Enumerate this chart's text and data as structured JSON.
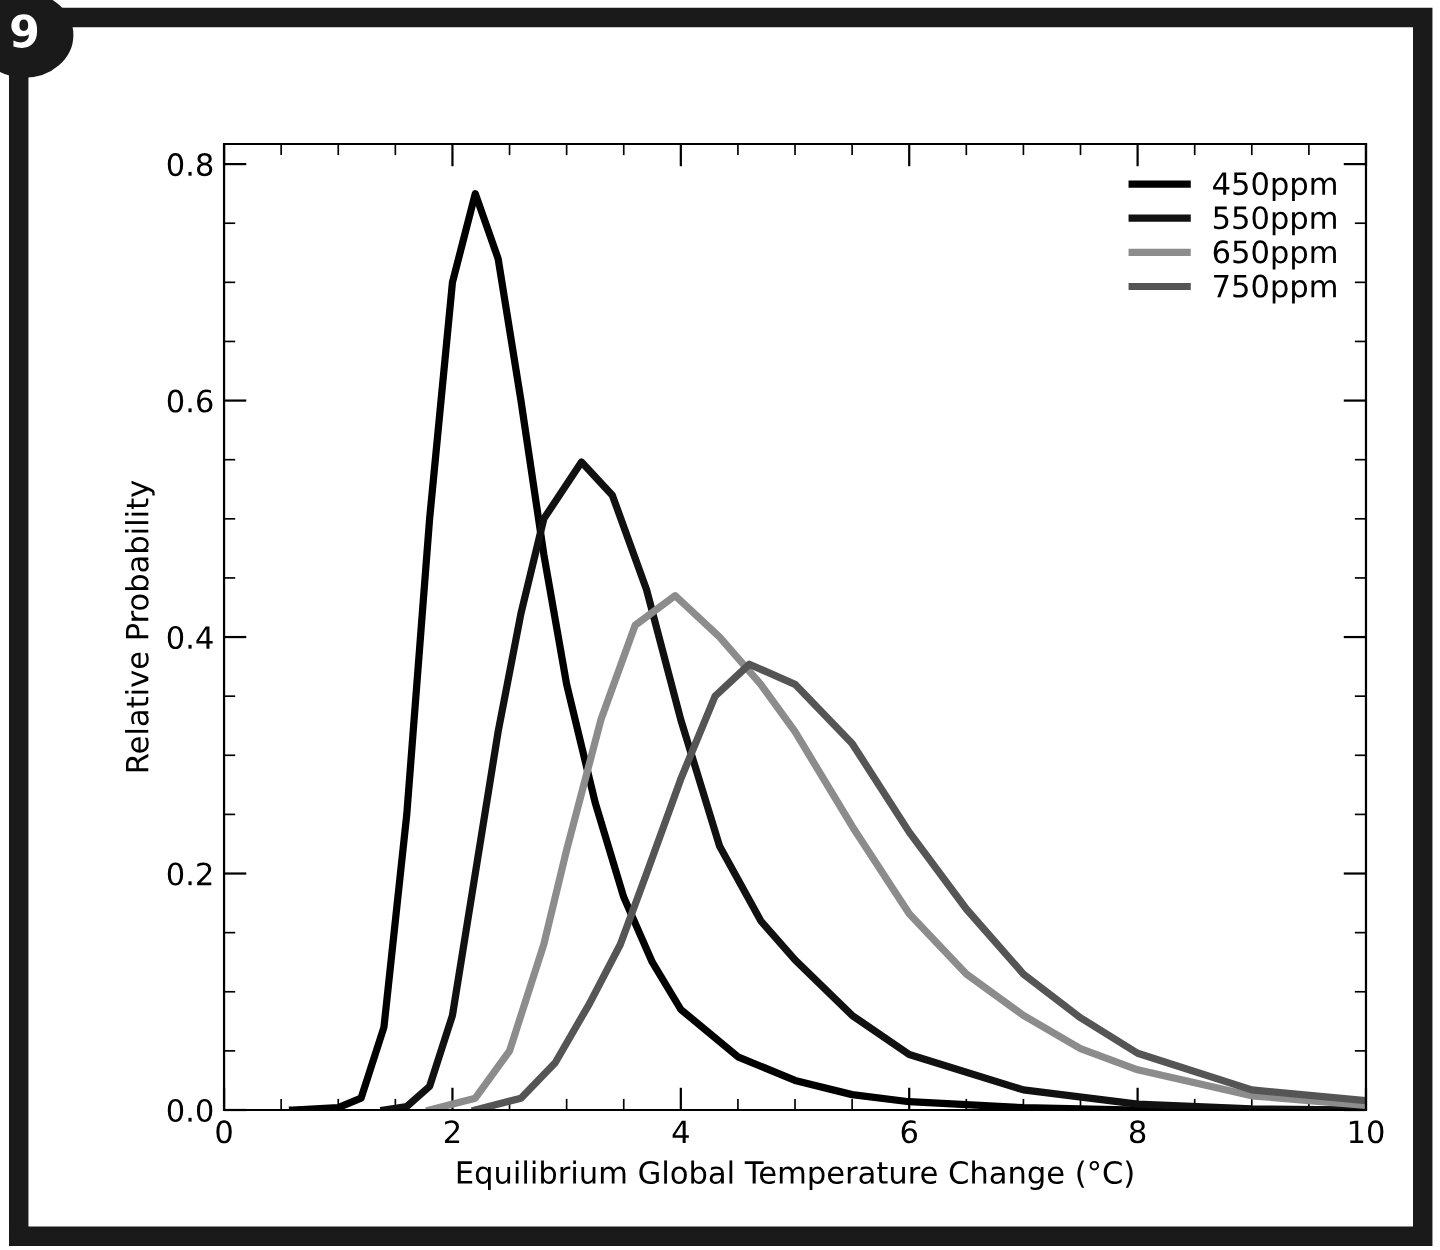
{
  "chart_data": {
    "type": "line",
    "xlabel": "Equilibrium Global Temperature Change (°C)",
    "ylabel": "Relative Probability",
    "annotations": [
      "9"
    ],
    "xlim": [
      0,
      10
    ],
    "xticks": [
      0,
      2,
      4,
      6,
      8,
      10
    ],
    "ylim": [
      0,
      0.817
    ],
    "yticks": [
      {
        "value": 0,
        "label": "0.0"
      },
      {
        "value": 0.2,
        "label": "0.2"
      },
      {
        "value": 0.4,
        "label": "0.4"
      },
      {
        "value": 0.6,
        "label": "0.6"
      },
      {
        "value": 0.8,
        "label": "0.8"
      }
    ],
    "grid": false,
    "legend": "top right",
    "marker": "none",
    "line_style": "solid",
    "series": [
      {
        "name": "450ppm",
        "color": "#000000",
        "x": [
          0.6,
          1.0,
          1.2,
          1.4,
          1.6,
          1.8,
          2.0,
          2.2,
          2.4,
          2.6,
          2.8,
          3.0,
          3.25,
          3.5,
          3.75,
          4.0,
          4.5,
          5.0,
          5.5,
          6.0,
          7.0,
          8.0,
          10.0
        ],
        "values": [
          0,
          0.002,
          0.01,
          0.07,
          0.25,
          0.5,
          0.7,
          0.775,
          0.72,
          0.6,
          0.47,
          0.36,
          0.26,
          0.18,
          0.125,
          0.085,
          0.045,
          0.025,
          0.013,
          0.007,
          0.002,
          0,
          0
        ]
      },
      {
        "name": "550ppm",
        "color": "#111111",
        "x": [
          1.4,
          1.6,
          1.8,
          2.0,
          2.2,
          2.4,
          2.6,
          2.8,
          3.13,
          3.4,
          3.7,
          4.0,
          4.34,
          4.7,
          5.0,
          5.5,
          6.0,
          7.0,
          8.0,
          9.0,
          10.0
        ],
        "values": [
          0,
          0.003,
          0.02,
          0.08,
          0.2,
          0.32,
          0.42,
          0.5,
          0.548,
          0.52,
          0.44,
          0.33,
          0.223,
          0.16,
          0.127,
          0.08,
          0.047,
          0.017,
          0.005,
          0.001,
          0
        ]
      },
      {
        "name": "650ppm",
        "color": "#8c8c8c",
        "x": [
          1.8,
          2.2,
          2.5,
          2.8,
          3.0,
          3.3,
          3.6,
          3.95,
          4.34,
          4.7,
          5.0,
          5.5,
          6.0,
          6.5,
          7.0,
          7.5,
          8.0,
          9.0,
          10.0
        ],
        "values": [
          0,
          0.01,
          0.05,
          0.14,
          0.22,
          0.33,
          0.41,
          0.435,
          0.4,
          0.36,
          0.32,
          0.24,
          0.166,
          0.115,
          0.08,
          0.052,
          0.034,
          0.012,
          0.004
        ]
      },
      {
        "name": "750ppm",
        "color": "#555555",
        "x": [
          2.2,
          2.6,
          2.9,
          3.2,
          3.47,
          3.7,
          4.0,
          4.3,
          4.6,
          5.0,
          5.5,
          6.0,
          6.5,
          7.0,
          7.5,
          8.0,
          9.0,
          10.0
        ],
        "values": [
          0,
          0.01,
          0.04,
          0.09,
          0.14,
          0.2,
          0.28,
          0.35,
          0.377,
          0.36,
          0.31,
          0.235,
          0.17,
          0.115,
          0.078,
          0.048,
          0.017,
          0.008
        ]
      }
    ]
  }
}
